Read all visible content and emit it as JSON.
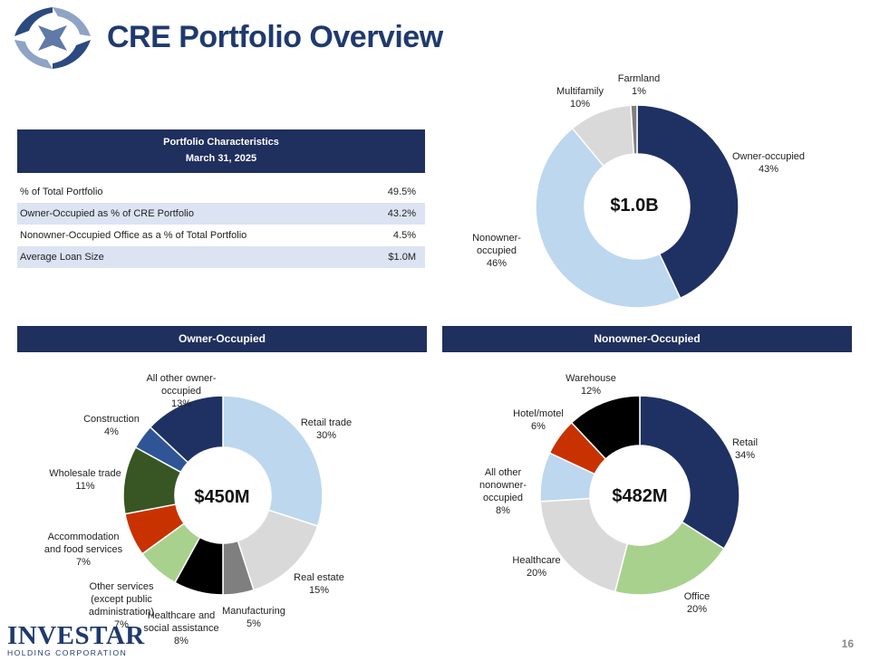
{
  "title": "CRE Portfolio Overview",
  "page_number": "16",
  "brand": {
    "name": "INVESTAR",
    "subtitle": "HOLDING CORPORATION"
  },
  "table": {
    "header_line1": "Portfolio Characteristics",
    "header_line2": "March 31, 2025",
    "rows": [
      {
        "label": "% of Total Portfolio",
        "value": "49.5%"
      },
      {
        "label": "Owner-Occupied as % of CRE Portfolio",
        "value": "43.2%"
      },
      {
        "label": "Nonowner-Occupied Office as a % of Total Portfolio",
        "value": "4.5%"
      },
      {
        "label": "Average Loan Size",
        "value": "$1.0M"
      }
    ]
  },
  "sections": {
    "owner": "Owner-Occupied",
    "nonowner": "Nonowner-Occupied"
  },
  "colors": {
    "navy": "#1f3163",
    "light_blue": "#bdd7ee",
    "light_gray": "#d9d9d9",
    "dark_gray": "#7f7f7f",
    "black": "#000000",
    "light_green": "#a9d18e",
    "red": "#c83200",
    "dark_green": "#375623",
    "mid_blue": "#2f5597",
    "header_bg": "#1f2f5e"
  },
  "chart_data": [
    {
      "type": "pie",
      "title": "CRE Portfolio",
      "center_label": "$1.0B",
      "categories": [
        "Owner-occupied",
        "Nonowner-occupied",
        "Multifamily",
        "Farmland"
      ],
      "values": [
        43,
        46,
        10,
        1
      ],
      "labels": [
        {
          "lines": [
            "Owner-occupied",
            "43%"
          ]
        },
        {
          "lines": [
            "Nonowner-",
            "occupied",
            "46%"
          ]
        },
        {
          "lines": [
            "Multifamily",
            "10%"
          ]
        },
        {
          "lines": [
            "Farmland",
            "1%"
          ]
        }
      ]
    },
    {
      "type": "pie",
      "title": "Owner-Occupied",
      "center_label": "$450M",
      "categories": [
        "Retail trade",
        "Real estate",
        "Manufacturing",
        "Healthcare and social assistance",
        "Other services (except public administration)",
        "Accommodation and food services",
        "Wholesale trade",
        "Construction",
        "All other owner-occupied"
      ],
      "values": [
        30,
        15,
        5,
        8,
        7,
        7,
        11,
        4,
        13
      ],
      "labels": [
        {
          "lines": [
            "Retail trade",
            "30%"
          ]
        },
        {
          "lines": [
            "Real estate",
            "15%"
          ]
        },
        {
          "lines": [
            "Manufacturing",
            "5%"
          ]
        },
        {
          "lines": [
            "Healthcare and",
            "social assistance",
            "8%"
          ]
        },
        {
          "lines": [
            "Other services",
            "(except public",
            "administration)",
            "7%"
          ]
        },
        {
          "lines": [
            "Accommodation",
            "and food services",
            "7%"
          ]
        },
        {
          "lines": [
            "Wholesale trade",
            "11%"
          ]
        },
        {
          "lines": [
            "Construction",
            "4%"
          ]
        },
        {
          "lines": [
            "All other owner-",
            "occupied",
            "13%"
          ]
        }
      ]
    },
    {
      "type": "pie",
      "title": "Nonowner-Occupied",
      "center_label": "$482M",
      "categories": [
        "Retail",
        "Office",
        "Healthcare",
        "All other nonowner-occupied",
        "Hotel/motel",
        "Warehouse"
      ],
      "values": [
        34,
        20,
        20,
        8,
        6,
        12
      ],
      "labels": [
        {
          "lines": [
            "Retail",
            "34%"
          ]
        },
        {
          "lines": [
            "Office",
            "20%"
          ]
        },
        {
          "lines": [
            "Healthcare",
            "20%"
          ]
        },
        {
          "lines": [
            "All other",
            "nonowner-",
            "occupied",
            "8%"
          ]
        },
        {
          "lines": [
            "Hotel/motel",
            "6%"
          ]
        },
        {
          "lines": [
            "Warehouse",
            "12%"
          ]
        }
      ]
    }
  ]
}
